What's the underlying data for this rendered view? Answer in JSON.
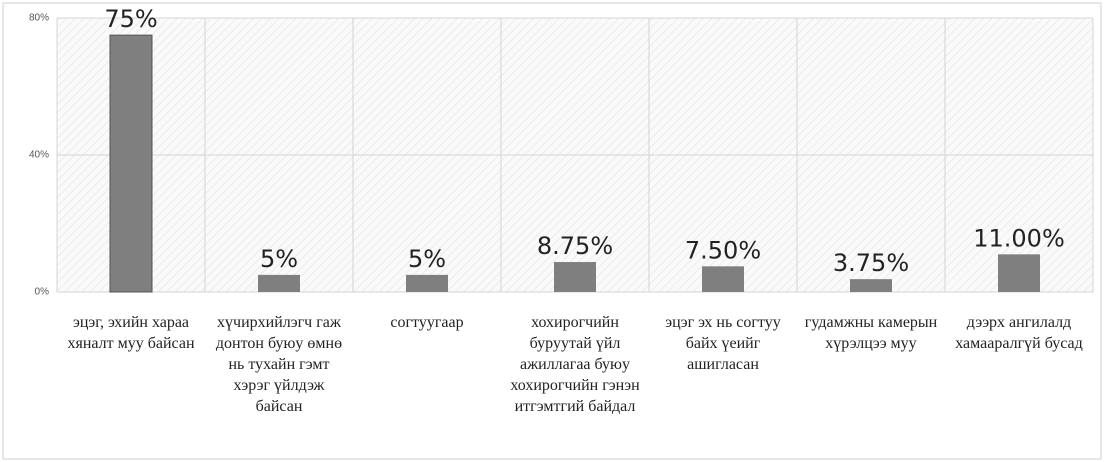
{
  "chart_data": {
    "type": "bar",
    "categories": [
      "эцэг, эхийн хараа хяналт муу байсан",
      "хүчирхийлэгч гаж донтон буюу өмнө нь тухайн гэмт хэрэг үйлдэж байсан",
      "согтуугаар",
      "хохирогчийн буруутай үйл ажиллагаа буюу хохирогчийн гэнэн итгэмтгий байдал",
      "эцэг эх нь согтуу байх үеийг ашигласан",
      "гудамжны камерын хүрэлцээ муу",
      "дээрх ангилалд хамааралгүй бусад"
    ],
    "values": [
      75,
      5,
      5,
      8.75,
      7.5,
      3.75,
      11
    ],
    "value_labels": [
      "75%",
      "5%",
      "5%",
      "8.75%",
      "7.50%",
      "3.75%",
      "11.00%"
    ],
    "color": "#7f7f7f",
    "ylim": [
      0,
      80
    ],
    "yticks": [
      {
        "value": 0,
        "label": "0%"
      },
      {
        "value": 40,
        "label": "40%"
      },
      {
        "value": 80,
        "label": "80%"
      }
    ],
    "grid": true
  }
}
